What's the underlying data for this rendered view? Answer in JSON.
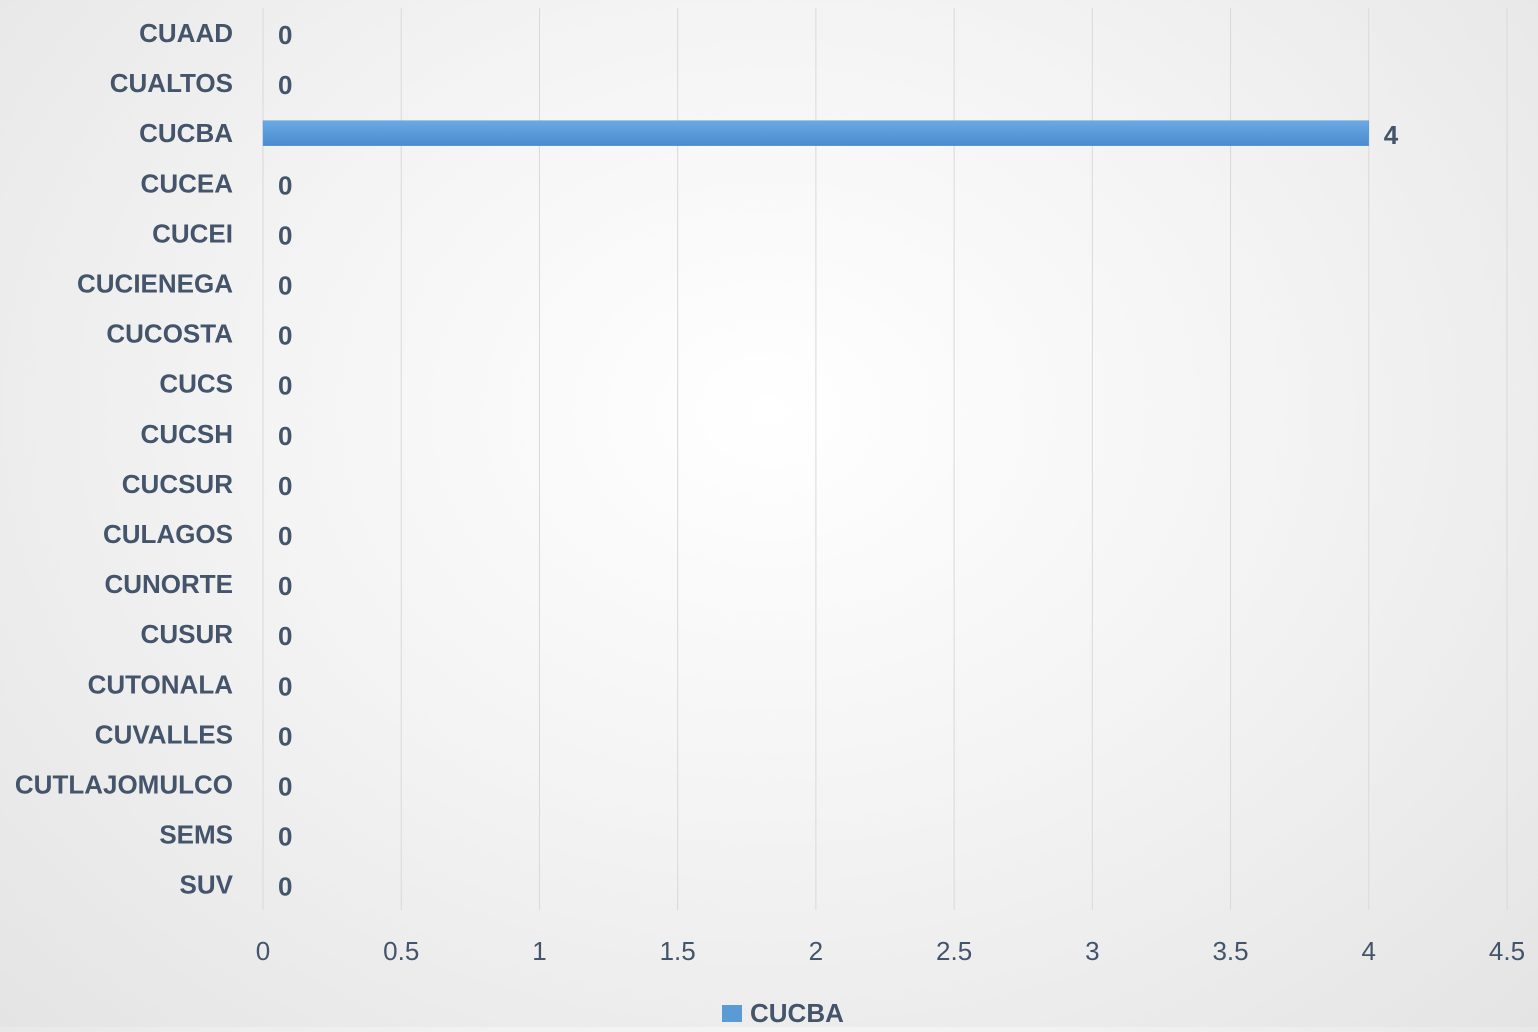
{
  "chart_data": {
    "type": "bar",
    "orientation": "horizontal",
    "categories": [
      "CUAAD",
      "CUALTOS",
      "CUCBA",
      "CUCEA",
      "CUCEI",
      "CUCIENEGA",
      "CUCOSTA",
      "CUCS",
      "CUCSH",
      "CUCSUR",
      "CULAGOS",
      "CUNORTE",
      "CUSUR",
      "CUTONALA",
      "CUVALLES",
      "CUTLAJOMULCO",
      "SEMS",
      "SUV"
    ],
    "series": [
      {
        "name": "CUCBA",
        "values": [
          0,
          0,
          4,
          0,
          0,
          0,
          0,
          0,
          0,
          0,
          0,
          0,
          0,
          0,
          0,
          0,
          0,
          0
        ],
        "color": "#5b9bd5"
      }
    ],
    "xlim": [
      0,
      4.5
    ],
    "xticks": [
      "0",
      "0.5",
      "1",
      "1.5",
      "2",
      "2.5",
      "3",
      "3.5",
      "4",
      "4.5"
    ],
    "xlabel": "",
    "ylabel": "",
    "title": "",
    "grid": "vertical",
    "legend": {
      "position": "bottom",
      "entries": [
        "CUCBA"
      ]
    },
    "data_labels": true
  }
}
